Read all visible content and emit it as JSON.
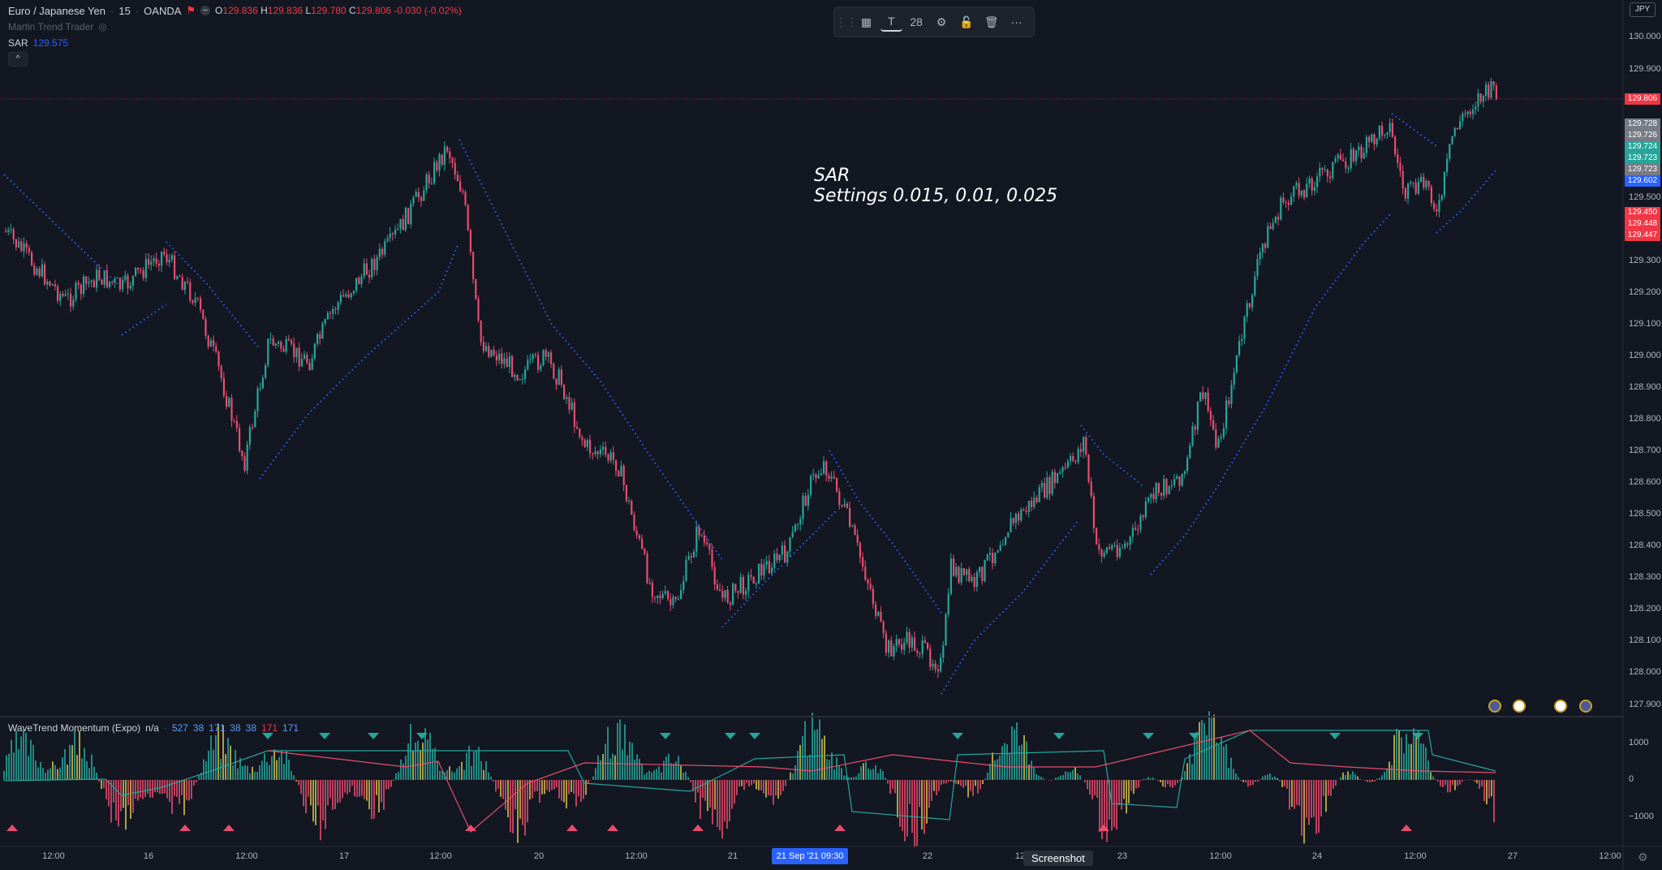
{
  "symbol": {
    "name": "Euro / Japanese Yen",
    "interval": "15",
    "exchange": "OANDA",
    "ohlc": {
      "o": "129.836",
      "h": "129.836",
      "l": "129.780",
      "c": "129.806",
      "change": "-0.030 (-0.02%)"
    },
    "labels": {
      "o": "O",
      "h": "H",
      "l": "L",
      "c": "C"
    }
  },
  "indicators": {
    "martin": "Martin Trend Trader",
    "sar_label": "SAR",
    "sar_value": "129.575"
  },
  "toolbar": {
    "font_size": "28"
  },
  "annotation": {
    "line1": "SAR",
    "line2": "Settings 0.015, 0.01, 0.025"
  },
  "currency_badge": "JPY",
  "price_axis": {
    "ticks": [
      "130.000",
      "129.900",
      "129.500",
      "129.300",
      "129.200",
      "129.100",
      "129.000",
      "128.900",
      "128.800",
      "128.700",
      "128.600",
      "128.500",
      "128.400",
      "128.300",
      "128.200",
      "128.100",
      "128.000",
      "127.900"
    ],
    "last_price": "129.806",
    "boxes": [
      {
        "value": "129.728",
        "color": "#787b86"
      },
      {
        "value": "129.726",
        "color": "#787b86"
      },
      {
        "value": "129.724",
        "color": "#26a69a"
      },
      {
        "value": "129.723",
        "color": "#26a69a"
      },
      {
        "value": "129.723",
        "color": "#787b86"
      },
      {
        "value": "129.602",
        "color": "#2962ff"
      },
      {
        "value": "129.450",
        "color": "#f23645"
      },
      {
        "value": "129.448",
        "color": "#f23645"
      },
      {
        "value": "129.447",
        "color": "#f23645"
      }
    ]
  },
  "oscillator": {
    "name": "WaveTrend Momentum (Expo)",
    "na": "n/a",
    "v1": "527",
    "v2": "38",
    "v3": "171",
    "v4": "38",
    "v5": "38",
    "v6": "171",
    "v7": "171",
    "ticks": [
      "1000",
      "0",
      "−1000"
    ]
  },
  "time_axis": {
    "labels": [
      "12:00",
      "16",
      "12:00",
      "17",
      "12:00",
      "20",
      "12:00",
      "21",
      "22",
      "12",
      "23",
      "12:00",
      "24",
      "12:00",
      "27",
      "12:00"
    ],
    "badge": "21 Sep '21   09:30"
  },
  "tooltip": "Screenshot",
  "colors": {
    "bg": "#131722",
    "up": "#26a69a",
    "down": "#ef5350",
    "sar": "#2962ff",
    "accent": "#f23645"
  },
  "chart_data": {
    "type": "candlestick",
    "series": [
      {
        "name": "SAR",
        "values": []
      }
    ],
    "ylim": [
      127.9,
      130.0
    ]
  }
}
